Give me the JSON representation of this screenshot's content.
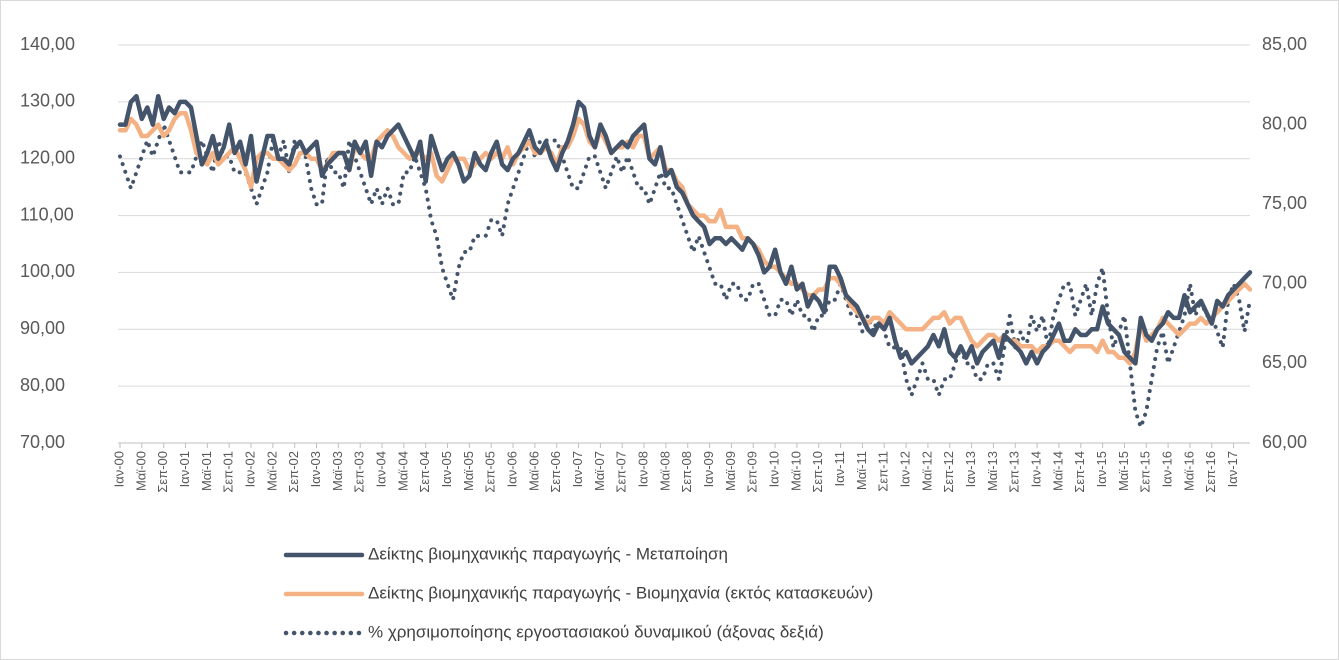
{
  "chart_data": {
    "type": "line",
    "categories": [
      "Ιαν-00",
      null,
      null,
      null,
      "Μαϊ-00",
      null,
      null,
      null,
      "Σεπ-00",
      null,
      null,
      null,
      "Ιαν-01",
      null,
      null,
      null,
      "Μαϊ-01",
      null,
      null,
      null,
      "Σεπ-01",
      null,
      null,
      null,
      "Ιαν-02",
      null,
      null,
      null,
      "Μαϊ-02",
      null,
      null,
      null,
      "Σεπ-02",
      null,
      null,
      null,
      "Ιαν-03",
      null,
      null,
      null,
      "Μαϊ-03",
      null,
      null,
      null,
      "Σεπ-03",
      null,
      null,
      null,
      "Ιαν-04",
      null,
      null,
      null,
      "Μαϊ-04",
      null,
      null,
      null,
      "Σεπ-04",
      null,
      null,
      null,
      "Ιαν-05",
      null,
      null,
      null,
      "Μαϊ-05",
      null,
      null,
      null,
      "Σεπ-05",
      null,
      null,
      null,
      "Ιαν-06",
      null,
      null,
      null,
      "Μαϊ-06",
      null,
      null,
      null,
      "Σεπ-06",
      null,
      null,
      null,
      "Ιαν-07",
      null,
      null,
      null,
      "Μαϊ-07",
      null,
      null,
      null,
      "Σεπ-07",
      null,
      null,
      null,
      "Ιαν-08",
      null,
      null,
      null,
      "Μαϊ-08",
      null,
      null,
      null,
      "Σεπ-08",
      null,
      null,
      null,
      "Ιαν-09",
      null,
      null,
      null,
      "Μαϊ-09",
      null,
      null,
      null,
      "Σεπ-09",
      null,
      null,
      null,
      "Ιαν-10",
      null,
      null,
      null,
      "Μαϊ-10",
      null,
      null,
      null,
      "Σεπ-10",
      null,
      null,
      null,
      "Ιαν-11",
      null,
      null,
      null,
      "Μαϊ-11",
      null,
      null,
      null,
      "Σεπ-11",
      null,
      null,
      null,
      "Ιαν-12",
      null,
      null,
      null,
      "Μαϊ-12",
      null,
      null,
      null,
      "Σεπ-12",
      null,
      null,
      null,
      "Ιαν-13",
      null,
      null,
      null,
      "Μαϊ-13",
      null,
      null,
      null,
      "Σεπ-13",
      null,
      null,
      null,
      "Ιαν-14",
      null,
      null,
      null,
      "Μαϊ-14",
      null,
      null,
      null,
      "Σεπ-14",
      null,
      null,
      null,
      "Ιαν-15",
      null,
      null,
      null,
      "Μαϊ-15",
      null,
      null,
      null,
      "Σεπ-15",
      null,
      null,
      null,
      "Ιαν-16",
      null,
      null,
      null,
      "Μαϊ-16",
      null,
      null,
      null,
      "Σεπ-16",
      null,
      null,
      null,
      "Ιαν-17",
      null,
      null,
      null
    ],
    "series": [
      {
        "name": "Δείκτης βιομηχανικής παραγωγής - Μεταποίηση",
        "color": "#44546a",
        "line_style": "solid",
        "axis": "y",
        "values": [
          126,
          126,
          130,
          131,
          127,
          129,
          126,
          131,
          127,
          129,
          128,
          130,
          130,
          129,
          124,
          119,
          121,
          124,
          120,
          122,
          126,
          121,
          123,
          119,
          124,
          116,
          120,
          124,
          124,
          120,
          120,
          119,
          122,
          123,
          121,
          122,
          123,
          117,
          119,
          120,
          121,
          121,
          118,
          123,
          121,
          123,
          117,
          123,
          122,
          124,
          125,
          126,
          124,
          122,
          120,
          123,
          116,
          124,
          121,
          118,
          120,
          121,
          119,
          116,
          117,
          121,
          119,
          118,
          121,
          123,
          119,
          118,
          120,
          121,
          123,
          125,
          122,
          121,
          123,
          120,
          118,
          121,
          123,
          126,
          130,
          129,
          124,
          122,
          126,
          124,
          121,
          122,
          123,
          122,
          124,
          125,
          126,
          120,
          119,
          122,
          117,
          118,
          115,
          114,
          112,
          110,
          109,
          108,
          105,
          106,
          106,
          105,
          106,
          105,
          104,
          106,
          105,
          103,
          100,
          101,
          104,
          100,
          98,
          101,
          97,
          98,
          94,
          96,
          95,
          93,
          101,
          101,
          99,
          96,
          95,
          94,
          92,
          90,
          89,
          91,
          90,
          92,
          88,
          85,
          86,
          84,
          85,
          86,
          87,
          89,
          87,
          90,
          86,
          85,
          87,
          85,
          87,
          84,
          86,
          87,
          88,
          85,
          89,
          88,
          87,
          86,
          84,
          86,
          84,
          86,
          87,
          89,
          91,
          88,
          88,
          90,
          89,
          89,
          90,
          90,
          94,
          91,
          90,
          89,
          86,
          85,
          84,
          92,
          89,
          88,
          90,
          91,
          93,
          92,
          92,
          96,
          93,
          94,
          95,
          93,
          91,
          95,
          94,
          96,
          97,
          98,
          99,
          100
        ]
      },
      {
        "name": "Δείκτης βιομηχανικής παραγωγής - Βιομηχανία (εκτός κατασκευών)",
        "color": "#f4b183",
        "line_style": "solid",
        "axis": "y",
        "values": [
          125,
          125,
          127,
          126,
          124,
          124,
          125,
          126,
          124,
          125,
          127,
          128,
          128,
          125,
          121,
          120,
          119,
          121,
          119,
          120,
          121,
          122,
          120,
          118,
          115,
          120,
          121,
          121,
          120,
          120,
          119,
          118,
          119,
          121,
          121,
          120,
          120,
          118,
          119,
          121,
          121,
          121,
          118,
          122,
          121,
          120,
          120,
          123,
          124,
          125,
          124,
          122,
          121,
          120,
          121,
          121,
          120,
          121,
          117,
          116,
          118,
          120,
          120,
          120,
          118,
          119,
          120,
          121,
          120,
          121,
          120,
          122,
          119,
          121,
          122,
          123,
          121,
          121,
          122,
          121,
          119,
          122,
          122,
          124,
          127,
          126,
          123,
          122,
          125,
          123,
          121,
          122,
          122,
          123,
          122,
          124,
          124,
          120,
          121,
          122,
          118,
          118,
          116,
          115,
          112,
          111,
          110,
          110,
          109,
          109,
          111,
          108,
          108,
          108,
          106,
          106,
          105,
          104,
          102,
          101,
          101,
          100,
          99,
          98,
          98,
          97,
          96,
          96,
          97,
          97,
          99,
          99,
          98,
          96,
          94,
          93,
          92,
          91,
          92,
          92,
          91,
          93,
          92,
          91,
          90,
          90,
          90,
          90,
          91,
          92,
          92,
          93,
          91,
          92,
          92,
          90,
          88,
          87,
          88,
          89,
          89,
          88,
          89,
          88,
          88,
          87,
          87,
          87,
          86,
          87,
          87,
          88,
          88,
          87,
          86,
          87,
          87,
          87,
          87,
          86,
          88,
          86,
          86,
          85,
          85,
          84,
          86,
          91,
          88,
          89,
          90,
          92,
          91,
          90,
          89,
          90,
          91,
          91,
          92,
          91,
          92,
          93,
          94,
          95,
          96,
          97,
          98,
          97
        ]
      },
      {
        "name": "% χρησιμοποίησης εργοστασιακού δυναμικού (άξονας δεξιά)",
        "color": "#44546a",
        "line_style": "dotted",
        "axis": "y2",
        "values": [
          78,
          77,
          76,
          77,
          78,
          79,
          78,
          79,
          80,
          79,
          78,
          77,
          77,
          77,
          78,
          79,
          78,
          77,
          79,
          78,
          78,
          77,
          77,
          77,
          76,
          75,
          76,
          77,
          79,
          78,
          79,
          77,
          79,
          78,
          78,
          76,
          75,
          75,
          78,
          77,
          77,
          76,
          79,
          78,
          77,
          76,
          75,
          76,
          75,
          76,
          75,
          75,
          77,
          77,
          78,
          77,
          76,
          74,
          73,
          71,
          70,
          69,
          71,
          72,
          72,
          73,
          73,
          73,
          74,
          74,
          73,
          75,
          76,
          77,
          78,
          79,
          78,
          79,
          79,
          79,
          79,
          78,
          77,
          76,
          76,
          77,
          78,
          78,
          77,
          76,
          77,
          78,
          77,
          78,
          77,
          76,
          76,
          75,
          76,
          77,
          76,
          76,
          75,
          74,
          73,
          72,
          73,
          72,
          71,
          70,
          70,
          69,
          70,
          70,
          69,
          69,
          70,
          70,
          69,
          68,
          68,
          69,
          69,
          68,
          69,
          68,
          68,
          67,
          68,
          68,
          69,
          69,
          70,
          69,
          68,
          68,
          67,
          68,
          67,
          68,
          67,
          66,
          66,
          66,
          64,
          63,
          64,
          65,
          64,
          64,
          63,
          64,
          64,
          65,
          66,
          65,
          65,
          64,
          64,
          65,
          65,
          64,
          66,
          68,
          66,
          67,
          66,
          68,
          67,
          68,
          66,
          68,
          69,
          70,
          70,
          68,
          69,
          70,
          68,
          70,
          71,
          68,
          66,
          67,
          68,
          65,
          62,
          61,
          62,
          64,
          66,
          67,
          65,
          66,
          67,
          68,
          70,
          68,
          69,
          68,
          68,
          67,
          66,
          69,
          70,
          69,
          67,
          69
        ]
      }
    ],
    "ylim": [
      70,
      140
    ],
    "yticks": [
      {
        "value": 70,
        "label": "70,00"
      },
      {
        "value": 80,
        "label": "80,00"
      },
      {
        "value": 90,
        "label": "90,00"
      },
      {
        "value": 100,
        "label": "100,00"
      },
      {
        "value": 110,
        "label": "110,00"
      },
      {
        "value": 120,
        "label": "120,00"
      },
      {
        "value": 130,
        "label": "130,00"
      },
      {
        "value": 140,
        "label": "140,00"
      }
    ],
    "y2lim": [
      60,
      85
    ],
    "y2ticks": [
      {
        "value": 60,
        "label": "60,00"
      },
      {
        "value": 65,
        "label": "65,00"
      },
      {
        "value": 70,
        "label": "70,00"
      },
      {
        "value": 75,
        "label": "75,00"
      },
      {
        "value": 80,
        "label": "80,00"
      },
      {
        "value": 85,
        "label": "85,00"
      }
    ],
    "grid": true,
    "legend": "bottom"
  }
}
